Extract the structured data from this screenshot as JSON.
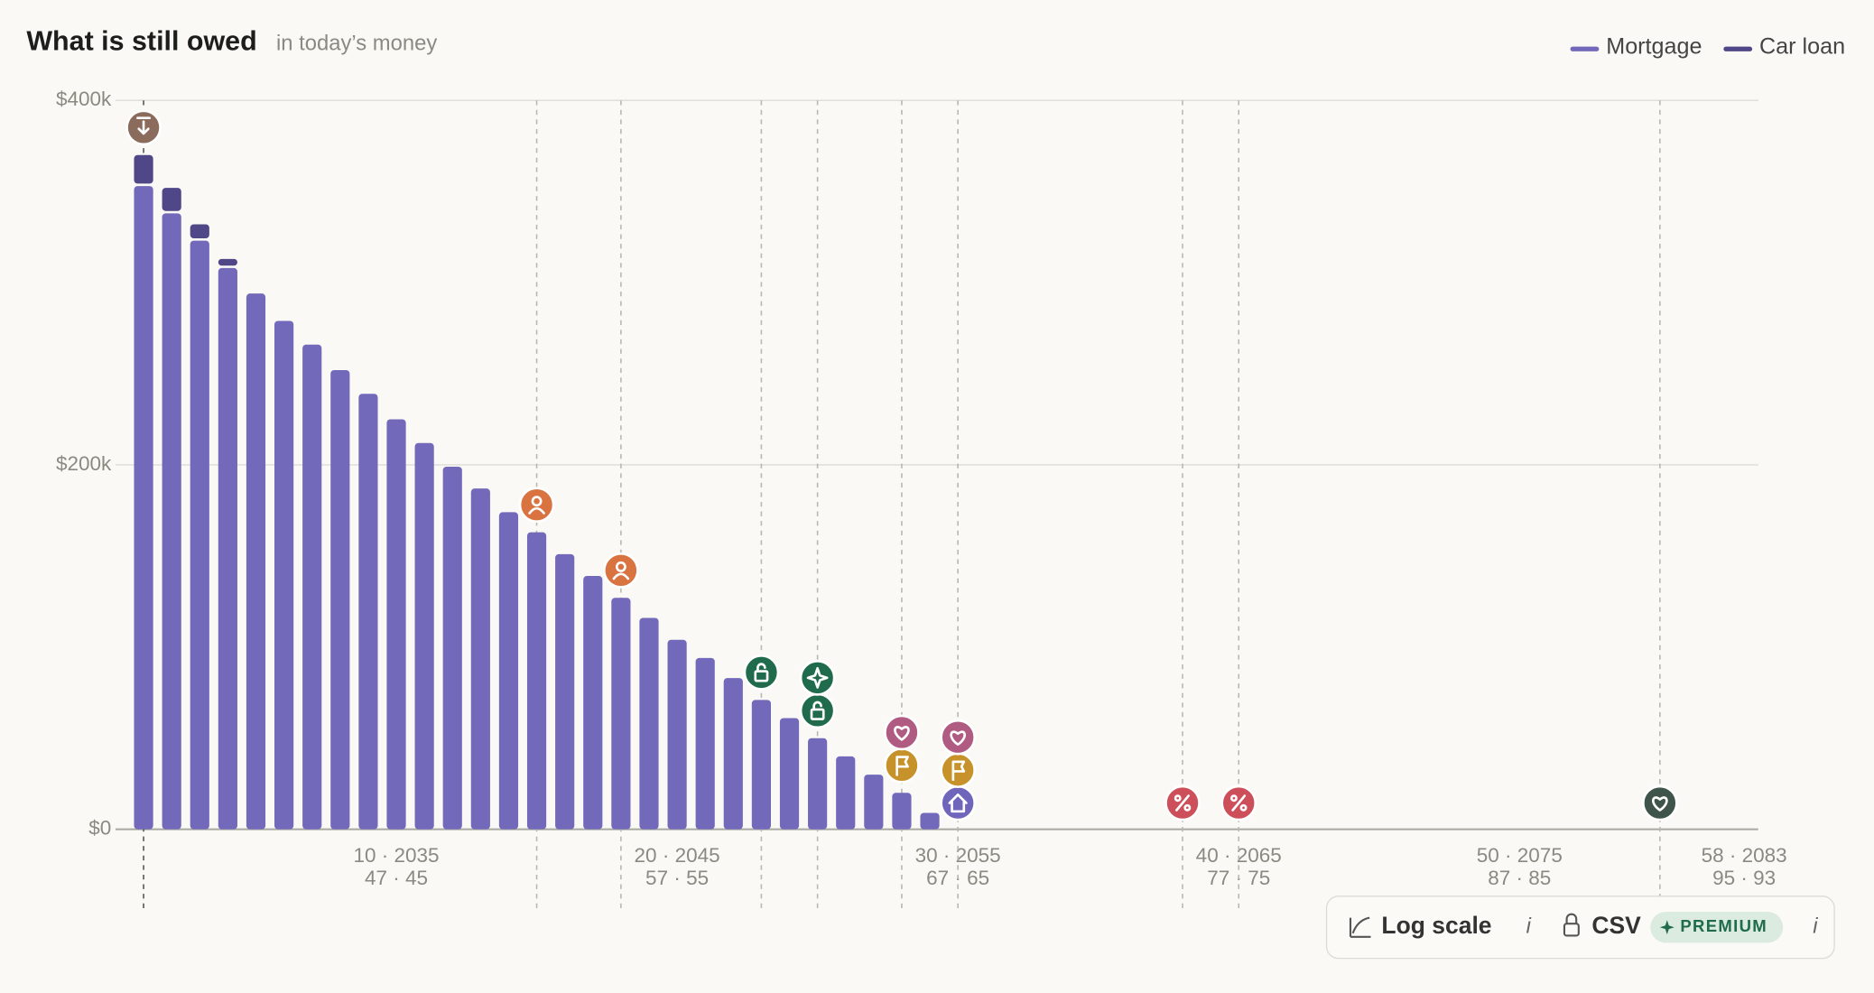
{
  "chart_data": {
    "type": "bar",
    "stacked": true,
    "title": "What is still owed",
    "subtitle": "in today’s money",
    "x": [
      1,
      2,
      3,
      4,
      5,
      6,
      7,
      8,
      9,
      10,
      11,
      12,
      13,
      14,
      15,
      16,
      17,
      18,
      19,
      20,
      21,
      22,
      23,
      24,
      25,
      26,
      27,
      28,
      29
    ],
    "series": [
      {
        "name": "Mortgage",
        "color": "#7269bb",
        "values": [
          353000,
          338000,
          323000,
          308000,
          294000,
          279000,
          266000,
          252000,
          239000,
          225000,
          212000,
          199000,
          187000,
          174000,
          163000,
          151000,
          139000,
          127000,
          116000,
          104000,
          94000,
          83000,
          71000,
          61000,
          50000,
          40000,
          30000,
          20000,
          9000
        ]
      },
      {
        "name": "Car loan",
        "color": "#4f4787",
        "values": [
          17000,
          14000,
          9000,
          5000,
          0,
          0,
          0,
          0,
          0,
          0,
          0,
          0,
          0,
          0,
          0,
          0,
          0,
          0,
          0,
          0,
          0,
          0,
          0,
          0,
          0,
          0,
          0,
          0,
          0
        ]
      }
    ],
    "xlim": [
      0,
      58.5
    ],
    "xticks": [
      {
        "value": 10,
        "label": "10 · 2035"
      },
      {
        "value": 20,
        "label": "20 · 2045"
      },
      {
        "value": 30,
        "label": "30 · 2055"
      },
      {
        "value": 40,
        "label": "40 · 2065"
      },
      {
        "value": 50,
        "label": "50 · 2075"
      },
      {
        "value": 58,
        "label": "58 · 2083"
      }
    ],
    "xtick_sublabels": [
      "47 · 45",
      "57 · 55",
      "67 · 65",
      "77 · 75",
      "87 · 85",
      "95 · 93"
    ],
    "ylim": [
      0,
      400000
    ],
    "yticks": [
      {
        "value": 0,
        "label": "$0"
      },
      {
        "value": 200000,
        "label": "$200k"
      },
      {
        "value": 400000,
        "label": "$400k"
      }
    ],
    "grid": true,
    "log_scale": false,
    "legend": "top-right",
    "events": [
      {
        "x": 1,
        "markers": [
          {
            "icon": "download",
            "color": "#8b6c5c"
          }
        ]
      },
      {
        "x": 15,
        "markers": [
          {
            "icon": "person",
            "color": "#d9733f"
          }
        ]
      },
      {
        "x": 18,
        "markers": [
          {
            "icon": "person",
            "color": "#d9733f"
          }
        ]
      },
      {
        "x": 23,
        "markers": [
          {
            "icon": "unlock",
            "color": "#1f6b4b"
          }
        ]
      },
      {
        "x": 25,
        "markers": [
          {
            "icon": "unlock",
            "color": "#1f6b4b"
          },
          {
            "icon": "star",
            "color": "#1f6b4b"
          }
        ]
      },
      {
        "x": 28,
        "markers": [
          {
            "icon": "flag",
            "color": "#c8922a"
          },
          {
            "icon": "heart",
            "color": "#b05b82"
          }
        ]
      },
      {
        "x": 30,
        "markers": [
          {
            "icon": "house",
            "color": "#6f66bb"
          },
          {
            "icon": "flag",
            "color": "#c8922a"
          },
          {
            "icon": "heart",
            "color": "#b05b82"
          }
        ]
      },
      {
        "x": 38,
        "markers": [
          {
            "icon": "percent",
            "color": "#cc4f5a"
          }
        ]
      },
      {
        "x": 40,
        "markers": [
          {
            "icon": "percent",
            "color": "#cc4f5a"
          }
        ]
      },
      {
        "x": 55,
        "markers": [
          {
            "icon": "heart",
            "color": "#3f5549"
          }
        ]
      }
    ]
  },
  "controls": {
    "log_scale": {
      "label": "Log scale",
      "info": "i"
    },
    "csv": {
      "label": "CSV",
      "badge": "PREMIUM",
      "info": "i"
    }
  }
}
